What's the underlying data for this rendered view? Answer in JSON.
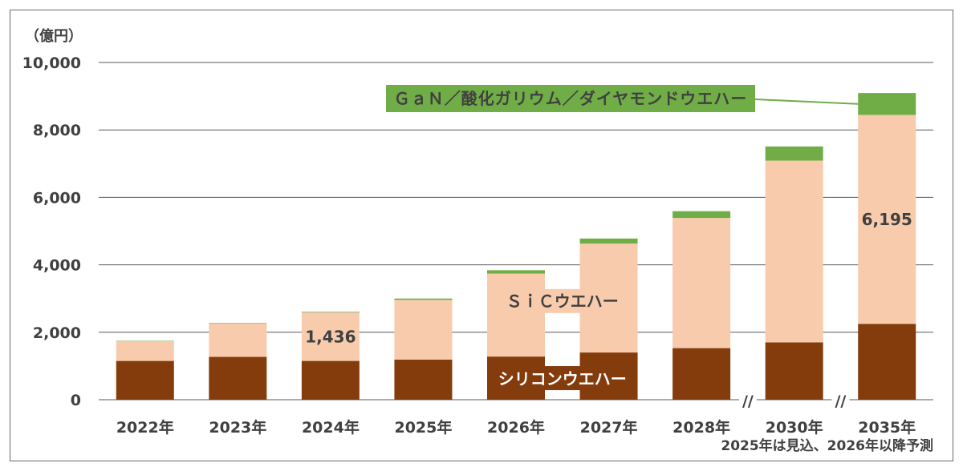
{
  "chart_data": {
    "type": "bar",
    "stacked": true,
    "unit": "（億円）",
    "note": "2025年は見込、2026年以降予測",
    "categories": [
      "2022年",
      "2023年",
      "2024年",
      "2025年",
      "2026年",
      "2027年",
      "2028年",
      "2030年",
      "2035年"
    ],
    "ylim": [
      0,
      10000
    ],
    "yticks": [
      0,
      2000,
      4000,
      6000,
      8000,
      10000
    ],
    "ytick_labels": [
      "0",
      "2,000",
      "4,000",
      "6,000",
      "8,000",
      "10,000"
    ],
    "grid": true,
    "axis_breaks_after": [
      "2028年",
      "2030年"
    ],
    "axis_break_symbol": "//",
    "series": [
      {
        "name": "シリコンウエハー",
        "color": "#843c0c",
        "values": [
          1150,
          1270,
          1150,
          1190,
          1280,
          1400,
          1530,
          1700,
          2250
        ]
      },
      {
        "name": "ＳｉＣウエハー",
        "color": "#f8cbad",
        "values": [
          590,
          990,
          1436,
          1770,
          2460,
          3230,
          3860,
          5390,
          6195
        ]
      },
      {
        "name": "ＧａＮ／酸化ガリウム／ダイヤモンドウエハー",
        "color": "#70ad47",
        "values": [
          10,
          15,
          20,
          40,
          100,
          150,
          200,
          420,
          650
        ]
      }
    ],
    "data_labels": [
      {
        "category": "2024年",
        "series": "ＳｉＣウエハー",
        "text": "1,436"
      },
      {
        "category": "2035年",
        "series": "ＳｉＣウエハー",
        "text": "6,195"
      }
    ],
    "series_labels": {
      "sic": "ＳｉＣウエハー",
      "si": "シリコンウエハー",
      "gan": "ＧａＮ／酸化ガリウム／ダイヤモンドウエハー"
    }
  }
}
